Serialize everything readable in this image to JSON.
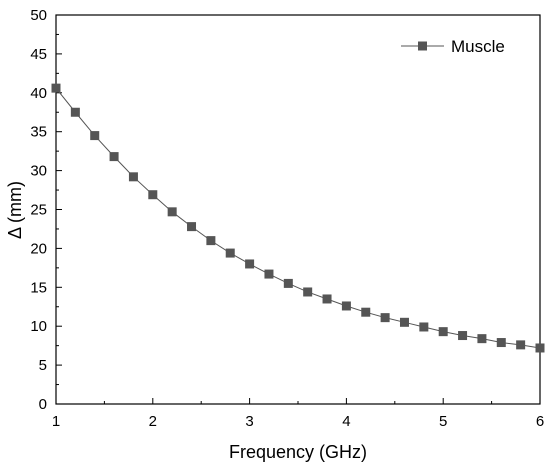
{
  "chart_data": {
    "type": "line",
    "xlabel": "Frequency (GHz)",
    "ylabel": "Δ (mm)",
    "xlim": [
      1,
      6
    ],
    "ylim": [
      0,
      50
    ],
    "xticks": [
      1,
      2,
      3,
      4,
      5,
      6
    ],
    "yticks": [
      0,
      5,
      10,
      15,
      20,
      25,
      30,
      35,
      40,
      45,
      50
    ],
    "grid": false,
    "legend_position": "top-right",
    "series": [
      {
        "name": "Muscle",
        "marker": "square",
        "color": "#555555",
        "x": [
          1.0,
          1.2,
          1.4,
          1.6,
          1.8,
          2.0,
          2.2,
          2.4,
          2.6,
          2.8,
          3.0,
          3.2,
          3.4,
          3.6,
          3.8,
          4.0,
          4.2,
          4.4,
          4.6,
          4.8,
          5.0,
          5.2,
          5.4,
          5.6,
          5.8,
          6.0
        ],
        "y": [
          40.6,
          37.5,
          34.5,
          31.8,
          29.2,
          26.9,
          24.7,
          22.8,
          21.0,
          19.4,
          18.0,
          16.7,
          15.5,
          14.4,
          13.5,
          12.6,
          11.8,
          11.1,
          10.5,
          9.9,
          9.3,
          8.8,
          8.4,
          7.9,
          7.6,
          7.2
        ]
      }
    ]
  }
}
